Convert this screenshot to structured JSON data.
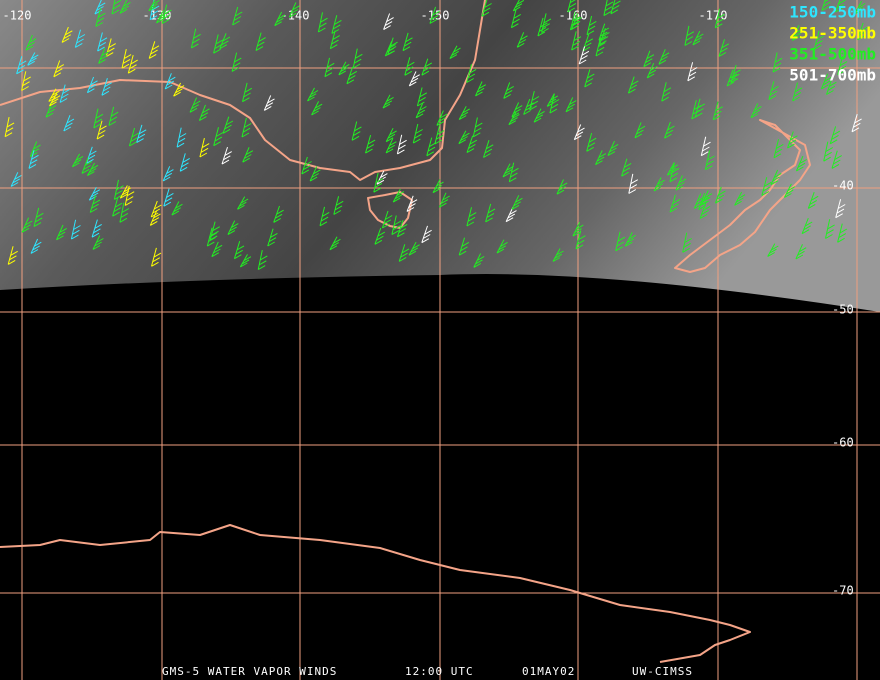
{
  "map": {
    "lon_labels": [
      "-120",
      "-130",
      "-140",
      "-150",
      "-160",
      "-170"
    ],
    "lat_labels": [
      "-40",
      "-50",
      "-60",
      "-70"
    ],
    "legend": [
      {
        "name": "150-250mb",
        "color": "#2ee6ff"
      },
      {
        "name": "251-350mb",
        "color": "#ffff00"
      },
      {
        "name": "351-500mb",
        "color": "#22ee22"
      },
      {
        "name": "501-700mb",
        "color": "#ffffff"
      }
    ],
    "footer": [
      "GMS-5 WATER VAPOR WINDS",
      "12:00 UTC",
      "01MAY02",
      "UW-CIMSS"
    ]
  }
}
